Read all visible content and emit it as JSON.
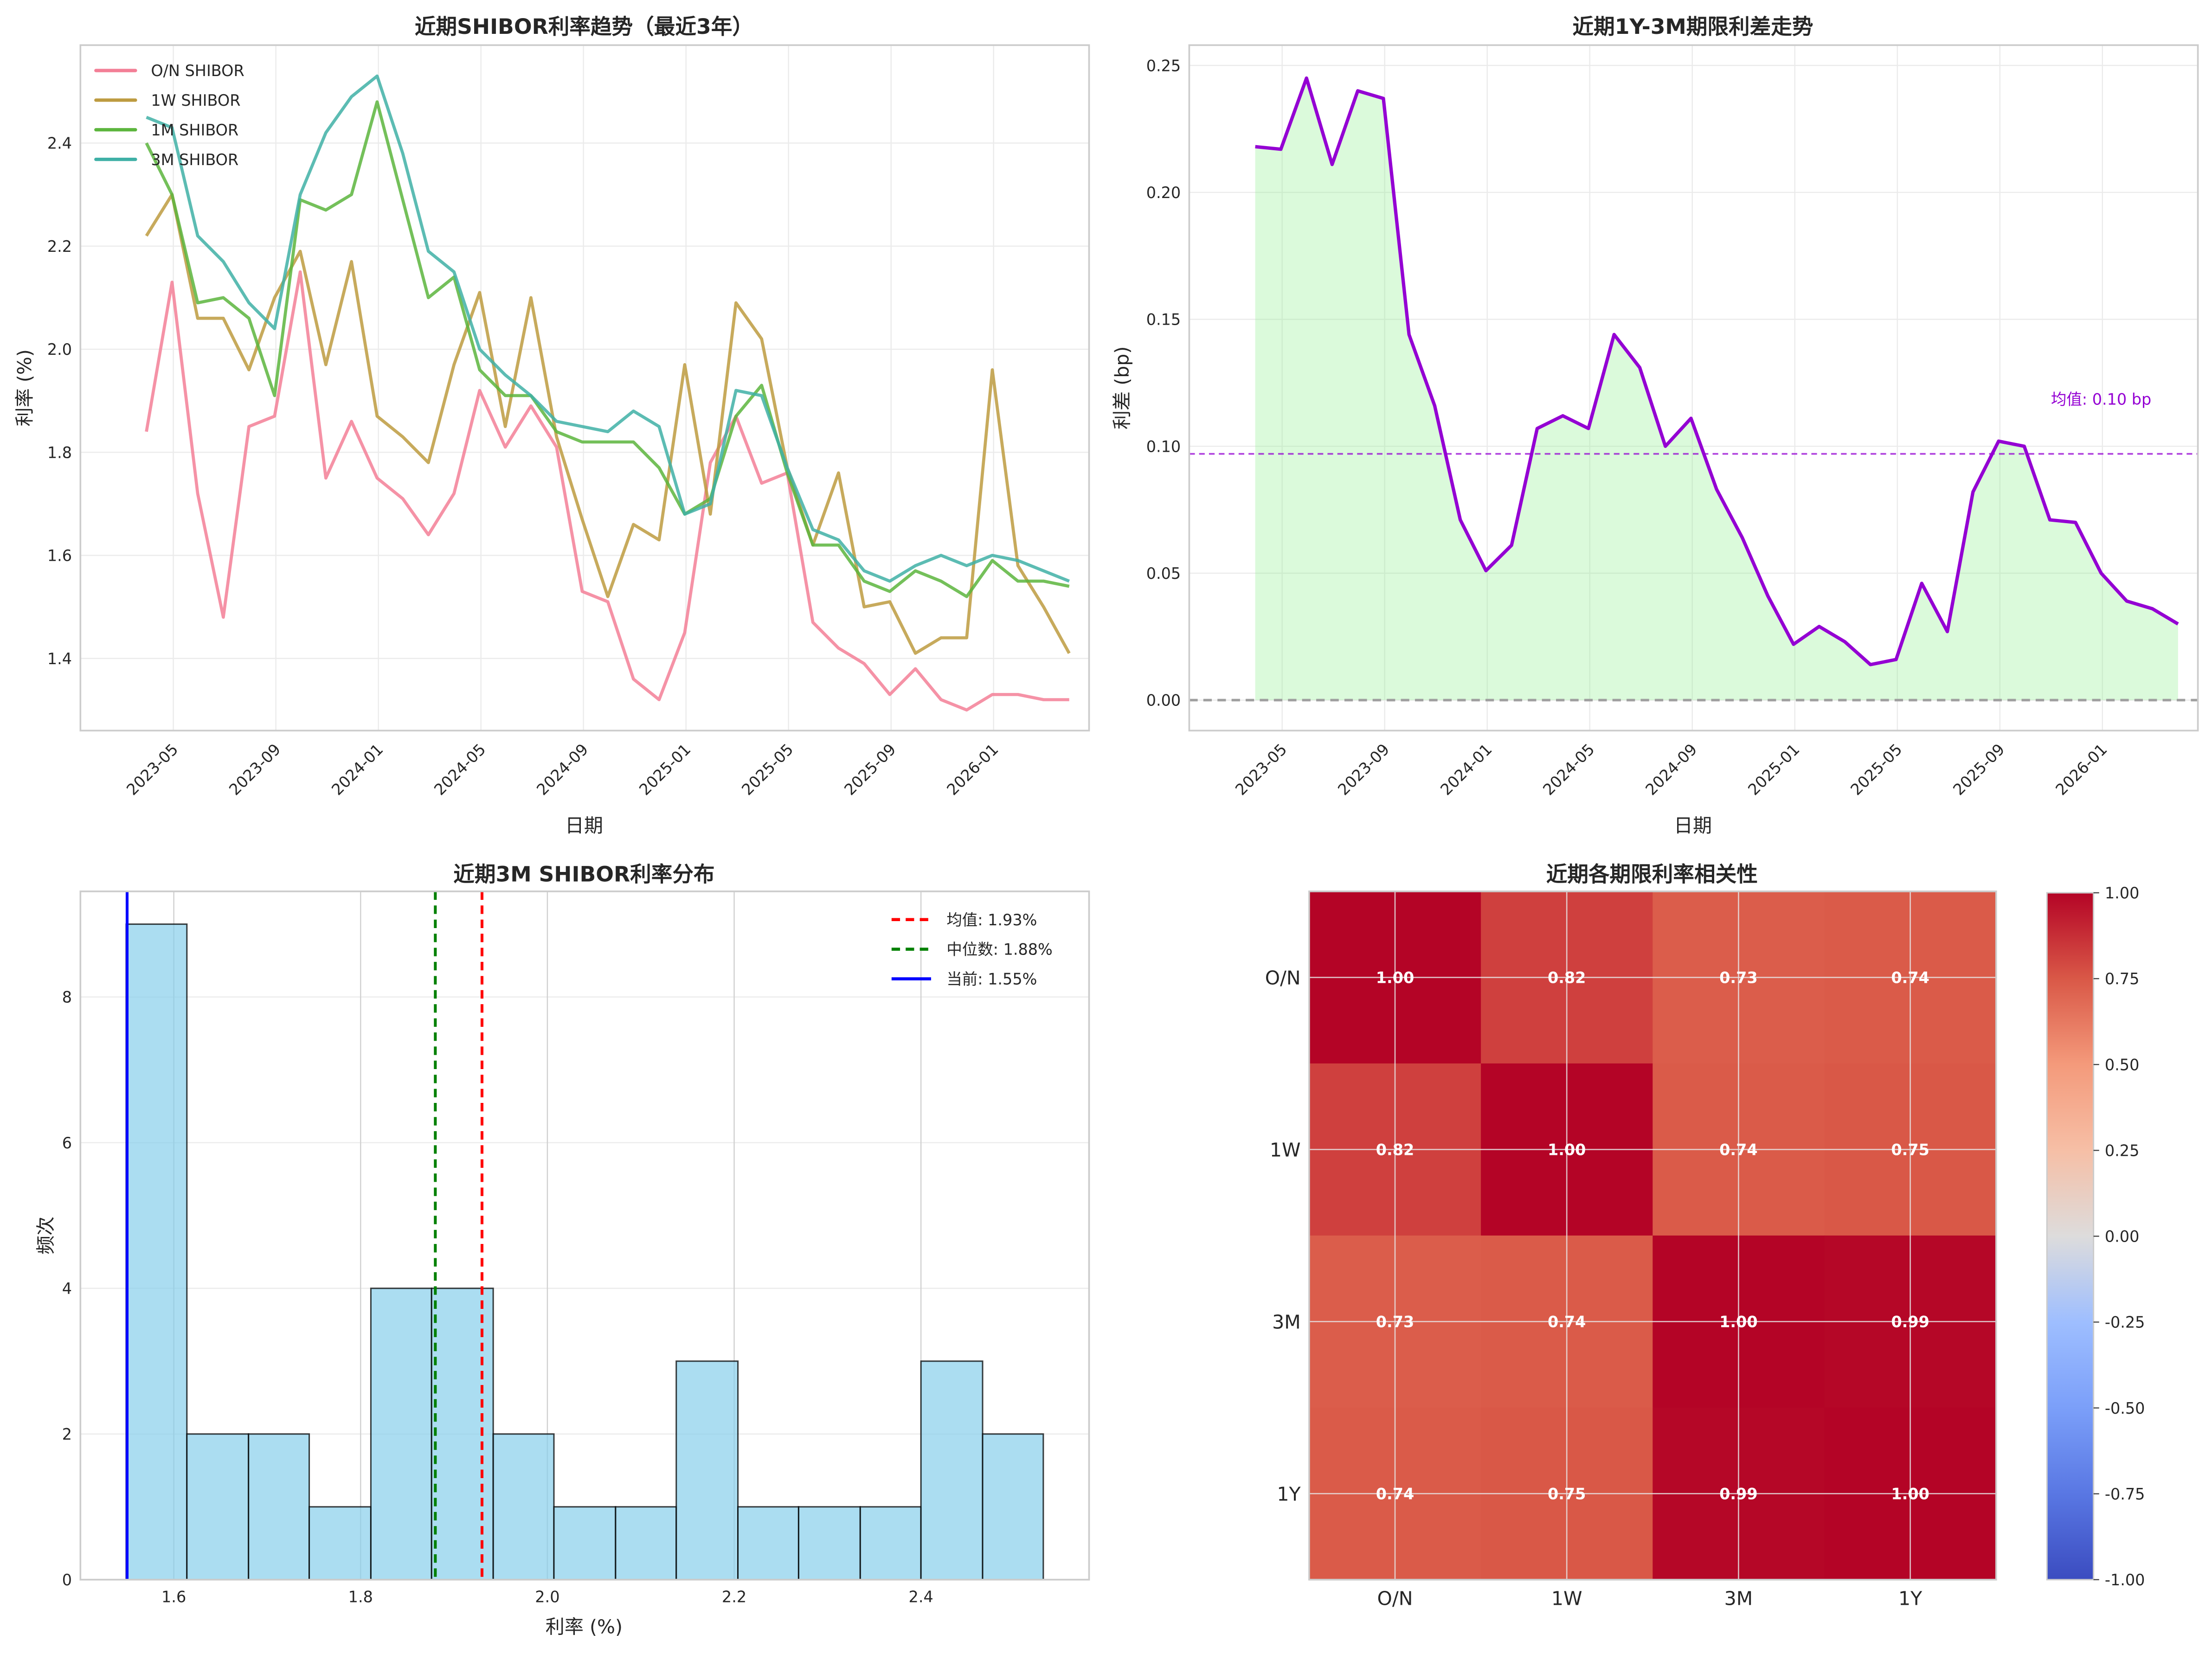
{
  "figure": {
    "panels": [
      "rates-trend",
      "term-spread",
      "rate-distribution",
      "correlation-heatmap"
    ]
  },
  "chart_data": [
    {
      "id": "rates-trend",
      "type": "line",
      "title": "近期SHIBOR利率趋势（最近3年）",
      "xlabel": "日期",
      "ylabel": "利率 (%)",
      "x": [
        "2023-03",
        "2023-04",
        "2023-05",
        "2023-06",
        "2023-07",
        "2023-08",
        "2023-09",
        "2023-10",
        "2023-11",
        "2023-12",
        "2024-01",
        "2024-02",
        "2024-03",
        "2024-04",
        "2024-05",
        "2024-06",
        "2024-07",
        "2024-08",
        "2024-09",
        "2024-10",
        "2024-11",
        "2024-12",
        "2025-01",
        "2025-02",
        "2025-03",
        "2025-04",
        "2025-05",
        "2025-06",
        "2025-07",
        "2025-08",
        "2025-09",
        "2025-10",
        "2025-11",
        "2025-12",
        "2026-01",
        "2026-02",
        "2026-03"
      ],
      "xticks": [
        "2023-05",
        "2023-09",
        "2024-01",
        "2024-05",
        "2024-09",
        "2025-01",
        "2025-05",
        "2025-09",
        "2026-01"
      ],
      "yticks": [
        "1.4",
        "1.6",
        "1.8",
        "2.0",
        "2.2",
        "2.4"
      ],
      "ylim": [
        1.26,
        2.59
      ],
      "grid": true,
      "legend_position": "top-left",
      "series": [
        {
          "name": "O/N SHIBOR",
          "color": "#f37f96",
          "values": [
            1.84,
            2.13,
            1.72,
            1.48,
            1.85,
            1.87,
            2.15,
            1.75,
            1.86,
            1.75,
            1.71,
            1.64,
            1.72,
            1.92,
            1.81,
            1.89,
            1.81,
            1.53,
            1.51,
            1.36,
            1.32,
            1.45,
            1.78,
            1.87,
            1.74,
            1.76,
            1.47,
            1.42,
            1.39,
            1.33,
            1.38,
            1.32,
            1.3,
            1.33,
            1.33,
            1.32,
            1.32
          ]
        },
        {
          "name": "1W SHIBOR",
          "color": "#bd9b40",
          "values": [
            2.22,
            2.3,
            2.06,
            2.06,
            1.96,
            2.1,
            2.19,
            1.97,
            2.17,
            1.87,
            1.83,
            1.78,
            1.97,
            2.11,
            1.85,
            2.1,
            1.83,
            1.67,
            1.52,
            1.66,
            1.63,
            1.97,
            1.68,
            2.09,
            2.02,
            1.77,
            1.62,
            1.76,
            1.5,
            1.51,
            1.41,
            1.44,
            1.44,
            1.96,
            1.58,
            1.5,
            1.41
          ]
        },
        {
          "name": "1M SHIBOR",
          "color": "#5cb53d",
          "values": [
            2.4,
            2.3,
            2.09,
            2.1,
            2.06,
            1.91,
            2.29,
            2.27,
            2.3,
            2.48,
            2.29,
            2.1,
            2.14,
            1.96,
            1.91,
            1.91,
            1.84,
            1.82,
            1.82,
            1.82,
            1.77,
            1.68,
            1.71,
            1.87,
            1.93,
            1.76,
            1.62,
            1.62,
            1.55,
            1.53,
            1.57,
            1.55,
            1.52,
            1.59,
            1.55,
            1.55,
            1.54
          ]
        },
        {
          "name": "3M SHIBOR",
          "color": "#3fb0a6",
          "values": [
            2.45,
            2.43,
            2.22,
            2.17,
            2.09,
            2.04,
            2.3,
            2.42,
            2.49,
            2.53,
            2.38,
            2.19,
            2.15,
            2.0,
            1.95,
            1.91,
            1.86,
            1.85,
            1.84,
            1.88,
            1.85,
            1.68,
            1.7,
            1.92,
            1.91,
            1.77,
            1.65,
            1.63,
            1.57,
            1.55,
            1.58,
            1.6,
            1.58,
            1.6,
            1.59,
            1.57,
            1.55
          ]
        }
      ]
    },
    {
      "id": "term-spread",
      "type": "area",
      "title": "近期1Y-3M期限利差走势",
      "xlabel": "日期",
      "ylabel": "利差 (bp)",
      "x": [
        "2023-03",
        "2023-04",
        "2023-05",
        "2023-06",
        "2023-07",
        "2023-08",
        "2023-09",
        "2023-10",
        "2023-11",
        "2023-12",
        "2024-01",
        "2024-02",
        "2024-03",
        "2024-04",
        "2024-05",
        "2024-06",
        "2024-07",
        "2024-08",
        "2024-09",
        "2024-10",
        "2024-11",
        "2024-12",
        "2025-01",
        "2025-02",
        "2025-03",
        "2025-04",
        "2025-05",
        "2025-06",
        "2025-07",
        "2025-08",
        "2025-09",
        "2025-10",
        "2025-11",
        "2025-12",
        "2026-01",
        "2026-02",
        "2026-03"
      ],
      "xticks": [
        "2023-05",
        "2023-09",
        "2024-01",
        "2024-05",
        "2024-09",
        "2025-01",
        "2025-05",
        "2025-09",
        "2026-01"
      ],
      "yticks": [
        "0.00",
        "0.05",
        "0.10",
        "0.15",
        "0.20",
        "0.25"
      ],
      "ylim": [
        -0.012,
        0.258
      ],
      "grid": true,
      "series": [
        {
          "name": "1Y-3M",
          "color": "#9400d3",
          "fill": "#90ee90",
          "values": [
            0.218,
            0.217,
            0.245,
            0.211,
            0.24,
            0.237,
            0.144,
            0.116,
            0.071,
            0.051,
            0.061,
            0.107,
            0.112,
            0.107,
            0.144,
            0.131,
            0.1,
            0.111,
            0.083,
            0.064,
            0.041,
            0.022,
            0.029,
            0.023,
            0.014,
            0.016,
            0.046,
            0.027,
            0.082,
            0.102,
            0.1,
            0.071,
            0.07,
            0.05,
            0.039,
            0.036,
            0.03
          ]
        }
      ],
      "mean_line": {
        "value": 0.097,
        "color": "#9400d3",
        "label": "均值: 0.10 bp"
      },
      "zero_line": {
        "value": 0.0,
        "color": "#a0a0a0"
      }
    },
    {
      "id": "rate-distribution",
      "type": "bar",
      "title": "近期3M SHIBOR利率分布",
      "xlabel": "利率 (%)",
      "ylabel": "频次",
      "bin_edges": [
        1.549,
        1.614,
        1.68,
        1.745,
        1.811,
        1.876,
        1.942,
        2.007,
        2.073,
        2.138,
        2.204,
        2.269,
        2.335,
        2.4,
        2.466,
        2.531
      ],
      "values": [
        9,
        2,
        2,
        1,
        4,
        4,
        2,
        1,
        1,
        3,
        1,
        1,
        1,
        3,
        2
      ],
      "bar_color": "#87ceeb",
      "xticks": [
        "1.6",
        "1.8",
        "2.0",
        "2.2",
        "2.4"
      ],
      "yticks": [
        "0",
        "2",
        "4",
        "6",
        "8"
      ],
      "xlim": [
        1.5,
        2.58
      ],
      "ylim": [
        0,
        9.45
      ],
      "grid": true,
      "legend_position": "top-right",
      "reference_lines": [
        {
          "label": "均值: 1.93%",
          "value": 1.93,
          "color": "#ff0000",
          "style": "dashed"
        },
        {
          "label": "中位数: 1.88%",
          "value": 1.88,
          "color": "#008000",
          "style": "dashed"
        },
        {
          "label": "当前: 1.55%",
          "value": 1.55,
          "color": "#0000ff",
          "style": "solid"
        }
      ]
    },
    {
      "id": "correlation-heatmap",
      "type": "heatmap",
      "title": "近期各期限利率相关性",
      "row_labels": [
        "O/N",
        "1W",
        "3M",
        "1Y"
      ],
      "col_labels": [
        "O/N",
        "1W",
        "3M",
        "1Y"
      ],
      "matrix": [
        [
          1.0,
          0.82,
          0.73,
          0.74
        ],
        [
          0.82,
          1.0,
          0.74,
          0.75
        ],
        [
          0.73,
          0.74,
          1.0,
          0.99
        ],
        [
          0.74,
          0.75,
          0.99,
          1.0
        ]
      ],
      "cell_labels": [
        [
          "1.00",
          "0.82",
          "0.73",
          "0.74"
        ],
        [
          "0.82",
          "1.00",
          "0.74",
          "0.75"
        ],
        [
          "0.73",
          "0.74",
          "1.00",
          "0.99"
        ],
        [
          "0.74",
          "0.75",
          "0.99",
          "1.00"
        ]
      ],
      "colormap": "coolwarm",
      "vmin": -1.0,
      "vmax": 1.0,
      "colorbar_ticks": [
        "1.00",
        "0.75",
        "0.50",
        "0.25",
        "0.00",
        "-0.25",
        "-0.50",
        "-0.75",
        "-1.00"
      ]
    }
  ]
}
